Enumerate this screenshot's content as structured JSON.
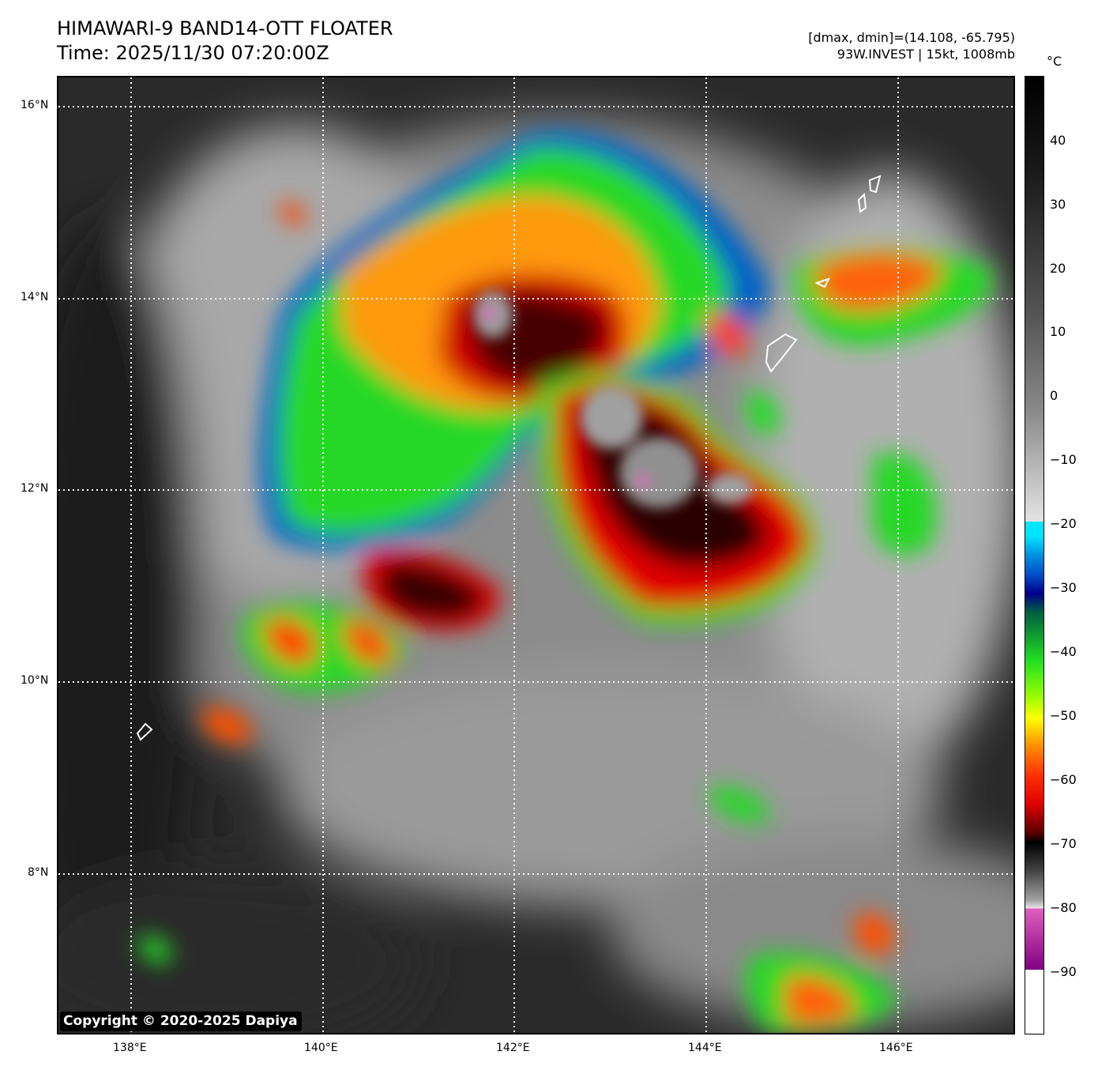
{
  "header": {
    "title_line1": "HIMAWARI-9 BAND14-OTT FLOATER",
    "title_line2": "Time: 2025/11/30 07:20:00Z",
    "info_line1": "[dmax, dmin]=(14.108, -65.795)",
    "info_line2": "93W.INVEST | 15kt, 1008mb"
  },
  "map": {
    "lat_labels": [
      "16°N",
      "14°N",
      "12°N",
      "10°N",
      "8°N"
    ],
    "lon_labels": [
      "138°E",
      "140°E",
      "142°E",
      "144°E",
      "146°E"
    ],
    "copyright": "Copyright © 2020-2025 Dapiya"
  },
  "colorbar": {
    "unit": "°C",
    "ticks": [
      "40",
      "30",
      "20",
      "10",
      "0",
      "−10",
      "−20",
      "−30",
      "−40",
      "−50",
      "−60",
      "−70",
      "−80",
      "−90"
    ],
    "colors": {
      "warm_black": "#000000",
      "gray_mid": "#8a8a8a",
      "light_gray": "#e0e0e0",
      "cyan": "#00e5ff",
      "blue": "#0050c8",
      "navy": "#00008b",
      "green": "#22dd22",
      "yellow": "#ffff00",
      "orange": "#ff8c00",
      "red": "#e00000",
      "darkred": "#5a0000",
      "pink": "#e060c0",
      "purple": "#800080"
    }
  }
}
